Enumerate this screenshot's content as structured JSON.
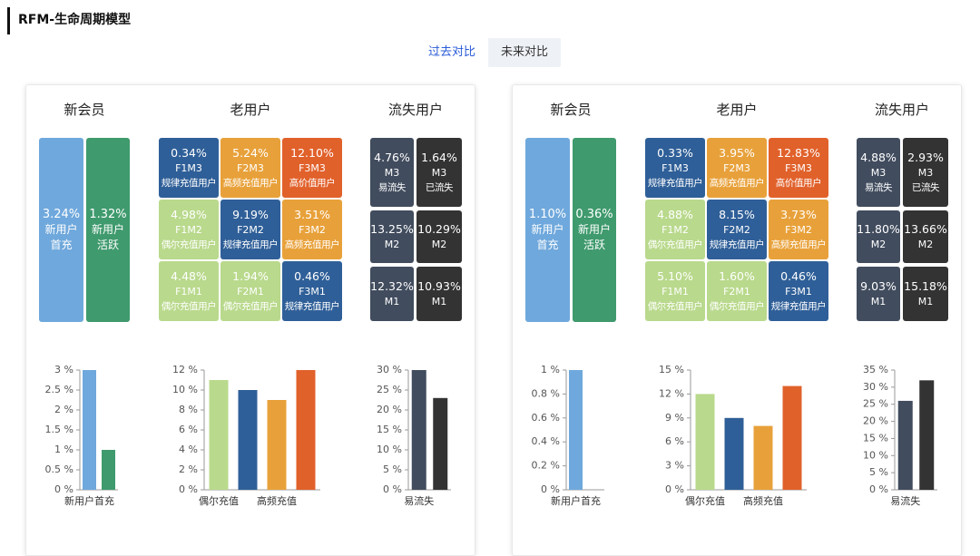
{
  "header": {
    "title": "RFM-生命周期模型"
  },
  "tabs": [
    "过去对比",
    "未来对比"
  ],
  "active_tab": 0,
  "panels": [
    {
      "sections": [
        "新会员",
        "老用户",
        "流失用户"
      ],
      "new_tiles": [
        {
          "value": "3.24%",
          "label": "新用户首充",
          "color": "#6fa8dc"
        },
        {
          "value": "1.32%",
          "label": "新用户活跃",
          "color": "#3f9a6d"
        }
      ],
      "old_tiles": [
        {
          "value": "0.34%",
          "code": "F1M3",
          "label": "规律充值用户",
          "color": "#2f5f98"
        },
        {
          "value": "5.24%",
          "code": "F2M3",
          "label": "高频充值用户",
          "color": "#e8a13a"
        },
        {
          "value": "12.10%",
          "code": "F3M3",
          "label": "高价值用户",
          "color": "#e1612b"
        },
        {
          "value": "4.98%",
          "code": "F1M2",
          "label": "偶尔充值用户",
          "color": "#b9d98c"
        },
        {
          "value": "9.19%",
          "code": "F2M2",
          "label": "规律充值用户",
          "color": "#2f5f98"
        },
        {
          "value": "3.51%",
          "code": "F3M2",
          "label": "高频充值用户",
          "color": "#e8a13a"
        },
        {
          "value": "4.48%",
          "code": "F1M1",
          "label": "偶尔充值用户",
          "color": "#b9d98c"
        },
        {
          "value": "1.94%",
          "code": "F2M1",
          "label": "偶尔充值用户",
          "color": "#b9d98c"
        },
        {
          "value": "0.46%",
          "code": "F3M1",
          "label": "规律充值用户",
          "color": "#2f5f98"
        }
      ],
      "churn_tiles": [
        {
          "value": "4.76%",
          "code": "M3",
          "label": "易流失",
          "color": "#414c5e"
        },
        {
          "value": "1.64%",
          "code": "M3",
          "label": "已流失",
          "color": "#333333"
        },
        {
          "value": "13.25%",
          "code": "M2",
          "color": "#414c5e"
        },
        {
          "value": "10.29%",
          "code": "M2",
          "color": "#333333"
        },
        {
          "value": "12.32%",
          "code": "M1",
          "color": "#414c5e"
        },
        {
          "value": "10.93%",
          "code": "M1",
          "color": "#333333"
        }
      ],
      "charts": [
        {
          "type": "bar",
          "categories": [
            "新用户首充",
            null
          ],
          "values": [
            3,
            1
          ],
          "colors": [
            "#6fa8dc",
            "#3f9a6d"
          ],
          "ylim": [
            0,
            3
          ],
          "yticks": [
            {
              "value": 0,
              "label": "0 %"
            },
            {
              "value": 0.5,
              "label": "0.5 %"
            },
            {
              "value": 1,
              "label": "1 %"
            },
            {
              "value": 1.5,
              "label": "1.5 %"
            },
            {
              "value": 2,
              "label": "2 %"
            },
            {
              "value": 2.5,
              "label": "2.5 %"
            },
            {
              "value": 3,
              "label": "3 %"
            }
          ]
        },
        {
          "type": "bar",
          "categories": [
            "偶尔充值",
            null,
            "高频充值",
            null
          ],
          "values": [
            11,
            10,
            9,
            12
          ],
          "colors": [
            "#b9d98c",
            "#2f5f98",
            "#e8a13a",
            "#e1612b"
          ],
          "ylim": [
            0,
            12
          ],
          "yticks": [
            {
              "value": 0,
              "label": "0 %"
            },
            {
              "value": 2,
              "label": "2 %"
            },
            {
              "value": 4,
              "label": "4 %"
            },
            {
              "value": 6,
              "label": "6 %"
            },
            {
              "value": 8,
              "label": "8 %"
            },
            {
              "value": 10,
              "label": "10 %"
            },
            {
              "value": 12,
              "label": "12 %"
            }
          ]
        },
        {
          "type": "bar",
          "categories": [
            "易流失",
            null
          ],
          "values": [
            30,
            23
          ],
          "colors": [
            "#414c5e",
            "#333333"
          ],
          "ylim": [
            0,
            30
          ],
          "yticks": [
            {
              "value": 0,
              "label": "0 %"
            },
            {
              "value": 5,
              "label": "5 %"
            },
            {
              "value": 10,
              "label": "10 %"
            },
            {
              "value": 15,
              "label": "15 %"
            },
            {
              "value": 20,
              "label": "20 %"
            },
            {
              "value": 25,
              "label": "25 %"
            },
            {
              "value": 30,
              "label": "30 %"
            }
          ]
        }
      ]
    },
    {
      "sections": [
        "新会员",
        "老用户",
        "流失用户"
      ],
      "new_tiles": [
        {
          "value": "1.10%",
          "label": "新用户首充",
          "color": "#6fa8dc"
        },
        {
          "value": "0.36%",
          "label": "新用户活跃",
          "color": "#3f9a6d"
        }
      ],
      "old_tiles": [
        {
          "value": "0.33%",
          "code": "F1M3",
          "label": "规律充值用户",
          "color": "#2f5f98"
        },
        {
          "value": "3.95%",
          "code": "F2M3",
          "label": "高频充值用户",
          "color": "#e8a13a"
        },
        {
          "value": "12.83%",
          "code": "F3M3",
          "label": "高价值用户",
          "color": "#e1612b"
        },
        {
          "value": "4.88%",
          "code": "F1M2",
          "label": "偶尔充值用户",
          "color": "#b9d98c"
        },
        {
          "value": "8.15%",
          "code": "F2M2",
          "label": "规律充值用户",
          "color": "#2f5f98"
        },
        {
          "value": "3.73%",
          "code": "F3M2",
          "label": "高频充值用户",
          "color": "#e8a13a"
        },
        {
          "value": "5.10%",
          "code": "F1M1",
          "label": "偶尔充值用户",
          "color": "#b9d98c"
        },
        {
          "value": "1.60%",
          "code": "F2M1",
          "label": "偶尔充值用户",
          "color": "#b9d98c"
        },
        {
          "value": "0.46%",
          "code": "F3M1",
          "label": "规律充值用户",
          "color": "#2f5f98"
        }
      ],
      "churn_tiles": [
        {
          "value": "4.88%",
          "code": "M3",
          "label": "易流失",
          "color": "#414c5e"
        },
        {
          "value": "2.93%",
          "code": "M3",
          "label": "已流失",
          "color": "#333333"
        },
        {
          "value": "11.80%",
          "code": "M2",
          "color": "#414c5e"
        },
        {
          "value": "13.66%",
          "code": "M2",
          "color": "#333333"
        },
        {
          "value": "9.03%",
          "code": "M1",
          "color": "#414c5e"
        },
        {
          "value": "15.18%",
          "code": "M1",
          "color": "#333333"
        }
      ],
      "charts": [
        {
          "type": "bar",
          "categories": [
            "新用户首充",
            null
          ],
          "values": [
            1,
            0
          ],
          "colors": [
            "#6fa8dc",
            "#3f9a6d"
          ],
          "ylim": [
            0,
            1
          ],
          "yticks": [
            {
              "value": 0,
              "label": "0 %"
            },
            {
              "value": 0.2,
              "label": "0.2 %"
            },
            {
              "value": 0.4,
              "label": "0.4 %"
            },
            {
              "value": 0.6,
              "label": "0.6 %"
            },
            {
              "value": 0.8,
              "label": "0.8 %"
            },
            {
              "value": 1,
              "label": "1 %"
            }
          ]
        },
        {
          "type": "bar",
          "categories": [
            "偶尔充值",
            null,
            "高频充值",
            null
          ],
          "values": [
            12,
            9,
            8,
            13
          ],
          "colors": [
            "#b9d98c",
            "#2f5f98",
            "#e8a13a",
            "#e1612b"
          ],
          "ylim": [
            0,
            15
          ],
          "yticks": [
            {
              "value": 0,
              "label": "0 %"
            },
            {
              "value": 3,
              "label": "3 %"
            },
            {
              "value": 6,
              "label": "6 %"
            },
            {
              "value": 9,
              "label": "9 %"
            },
            {
              "value": 12,
              "label": "12 %"
            },
            {
              "value": 15,
              "label": "15 %"
            }
          ]
        },
        {
          "type": "bar",
          "categories": [
            "易流失",
            null
          ],
          "values": [
            26,
            32
          ],
          "colors": [
            "#414c5e",
            "#333333"
          ],
          "ylim": [
            0,
            35
          ],
          "yticks": [
            {
              "value": 0,
              "label": "0 %"
            },
            {
              "value": 5,
              "label": "5 %"
            },
            {
              "value": 10,
              "label": "10 %"
            },
            {
              "value": 15,
              "label": "15 %"
            },
            {
              "value": 20,
              "label": "20 %"
            },
            {
              "value": 25,
              "label": "25 %"
            },
            {
              "value": 30,
              "label": "30 %"
            },
            {
              "value": 35,
              "label": "35 %"
            }
          ]
        }
      ]
    }
  ]
}
